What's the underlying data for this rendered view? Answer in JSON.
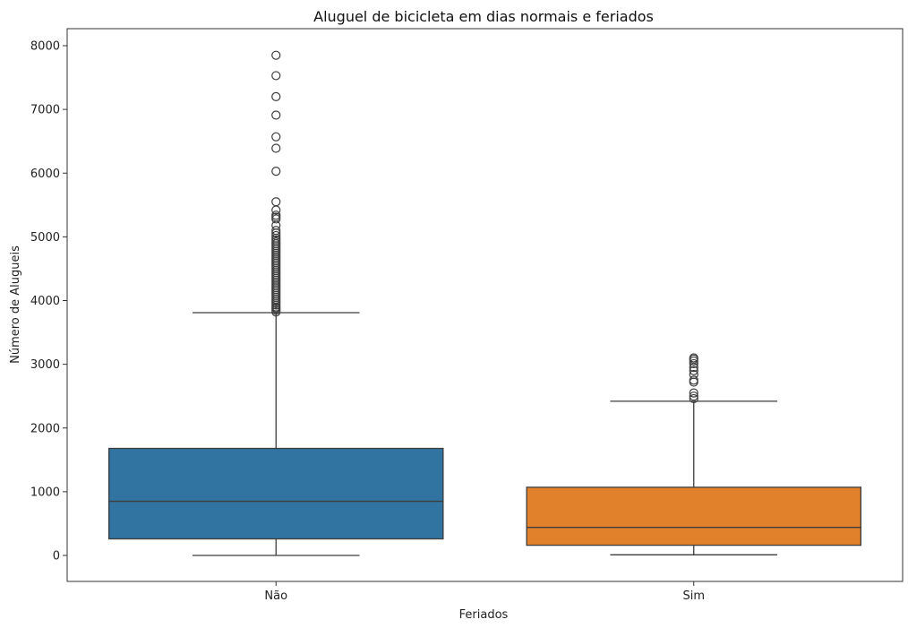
{
  "chart_data": {
    "type": "box",
    "title": "Aluguel de bicicleta em dias normais e feriados",
    "xlabel": "Feriados",
    "ylabel": "Número de Alugueis",
    "categories": [
      "Não",
      "Sim"
    ],
    "ylim": [
      -400,
      8200
    ],
    "yticks": [
      0,
      1000,
      2000,
      3000,
      4000,
      5000,
      6000,
      7000,
      8000
    ],
    "grid": false,
    "boxes": [
      {
        "category": "Não",
        "color": "#3274a1",
        "whisker_low": 0,
        "q1": 260,
        "median": 850,
        "q3": 1680,
        "whisker_high": 3810,
        "outliers": [
          3820,
          3850,
          3880,
          3900,
          3930,
          3960,
          3990,
          4020,
          4050,
          4080,
          4110,
          4140,
          4170,
          4200,
          4230,
          4260,
          4290,
          4320,
          4350,
          4380,
          4410,
          4440,
          4470,
          4500,
          4530,
          4560,
          4590,
          4620,
          4650,
          4680,
          4710,
          4740,
          4770,
          4800,
          4830,
          4860,
          4890,
          4920,
          4950,
          4980,
          5020,
          5060,
          5100,
          5180,
          5280,
          5310,
          5340,
          5420,
          5550,
          6030,
          6390,
          6570,
          6910,
          7200,
          7530,
          7850
        ]
      },
      {
        "category": "Sim",
        "color": "#e1812c",
        "whisker_low": 10,
        "q1": 160,
        "median": 440,
        "q3": 1070,
        "whisker_high": 2420,
        "outliers": [
          2460,
          2500,
          2550,
          2720,
          2750,
          2840,
          2900,
          2950,
          3010,
          3050,
          3080,
          3100
        ]
      }
    ]
  }
}
